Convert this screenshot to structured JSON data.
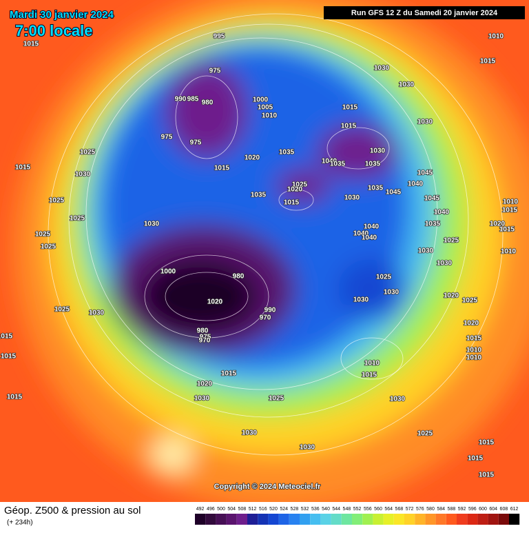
{
  "header": {
    "date": "Mardi 30 janvier 2024",
    "time": "7:00 locale",
    "run": "Run GFS 12 Z du Samedi 20 janvier 2024"
  },
  "copyright": "Copyright © 2024 Meteociel.fr",
  "footer": {
    "title": "Géop. Z500 & pression au sol",
    "lead": "(+ 234h)"
  },
  "isobar_labels": [
    995,
    1015,
    1010,
    1015,
    1030,
    975,
    1030,
    990,
    985,
    980,
    1000,
    1005,
    1010,
    1015,
    1015,
    1030,
    975,
    975,
    1030,
    1025,
    1035,
    1020,
    1040,
    1035,
    1015,
    1035,
    1015,
    1030,
    1045,
    1025,
    1040,
    1020,
    1035,
    1045,
    1035,
    1030,
    1045,
    1015,
    1025,
    1010,
    1015,
    1025,
    1040,
    1030,
    1035,
    1020,
    1040,
    1040,
    1040,
    1025,
    1015,
    1025,
    1025,
    1030,
    1010,
    1030,
    1000,
    980,
    1025,
    1030,
    1020,
    1025,
    1030,
    1020,
    1025,
    1030,
    990,
    970,
    1020,
    1015,
    1015,
    980,
    975,
    970,
    1010,
    1015,
    1010,
    1010,
    1015,
    1015,
    1020,
    1030,
    1015,
    1025,
    1030,
    1030,
    1025,
    1030,
    1015,
    1015,
    1015
  ],
  "legend": {
    "values": [
      492,
      496,
      500,
      504,
      508,
      512,
      516,
      520,
      524,
      528,
      532,
      536,
      540,
      544,
      548,
      552,
      556,
      560,
      564,
      568,
      572,
      576,
      580,
      584,
      588,
      592,
      596,
      600,
      604,
      608,
      612
    ],
    "colors": [
      "#1e0028",
      "#320a3c",
      "#460f55",
      "#5a146e",
      "#6e1e8c",
      "#1e1e96",
      "#1432b4",
      "#1446d2",
      "#1e64e6",
      "#2882f0",
      "#32a0f0",
      "#46bef0",
      "#5ad2e6",
      "#64dcc8",
      "#6ee6a0",
      "#82ee78",
      "#a0f050",
      "#c8f032",
      "#e6f028",
      "#fae628",
      "#ffd228",
      "#ffb428",
      "#ff9628",
      "#ff7828",
      "#ff5a1e",
      "#f03c1e",
      "#dc2814",
      "#be1e14",
      "#a01410",
      "#7a0a0a",
      "#000000"
    ]
  }
}
